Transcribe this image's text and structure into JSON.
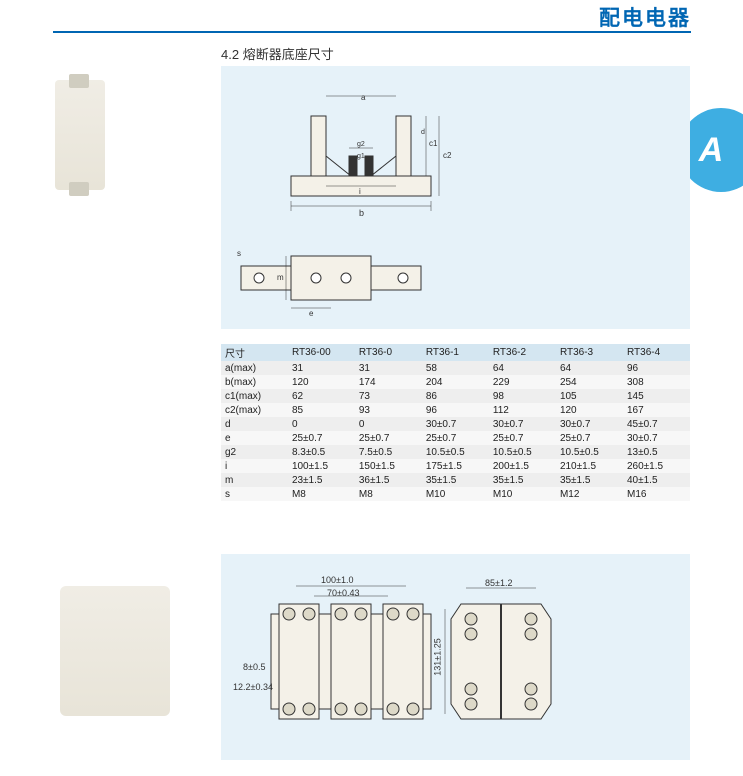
{
  "header": {
    "title": "配电电器"
  },
  "tab": {
    "letter": "A"
  },
  "section": {
    "number": "4.2",
    "title": "熔断器底座尺寸"
  },
  "table": {
    "columns": [
      "尺寸",
      "RT36-00",
      "RT36-0",
      "RT36-1",
      "RT36-2",
      "RT36-3",
      "RT36-4"
    ],
    "rows": [
      [
        "a(max)",
        "31",
        "31",
        "58",
        "64",
        "64",
        "96"
      ],
      [
        "b(max)",
        "120",
        "174",
        "204",
        "229",
        "254",
        "308"
      ],
      [
        "c1(max)",
        "62",
        "73",
        "86",
        "98",
        "105",
        "145"
      ],
      [
        "c2(max)",
        "85",
        "93",
        "96",
        "112",
        "120",
        "167"
      ],
      [
        "d",
        "0",
        "0",
        "30±0.7",
        "30±0.7",
        "30±0.7",
        "45±0.7"
      ],
      [
        "e",
        "25±0.7",
        "25±0.7",
        "25±0.7",
        "25±0.7",
        "25±0.7",
        "30±0.7"
      ],
      [
        "g2",
        "8.3±0.5",
        "7.5±0.5",
        "10.5±0.5",
        "10.5±0.5",
        "10.5±0.5",
        "13±0.5"
      ],
      [
        "i",
        "100±1.5",
        "150±1.5",
        "175±1.5",
        "200±1.5",
        "210±1.5",
        "260±1.5"
      ],
      [
        "m",
        "23±1.5",
        "36±1.5",
        "35±1.5",
        "35±1.5",
        "35±1.5",
        "40±1.5"
      ],
      [
        "s",
        "M8",
        "M8",
        "M10",
        "M10",
        "M12",
        "M16"
      ]
    ]
  },
  "diagram2": {
    "dims": {
      "width_outer": "100±1.0",
      "width_inner": "70±0.43",
      "hole_d": "8±0.5",
      "hole_h": "12.2±0.34",
      "side_w": "85±1.2",
      "side_h": "131±1.25"
    }
  },
  "colors": {
    "brand": "#0066b3",
    "tab_bg": "#3eaee2",
    "diagram_bg": "#e6f2f9",
    "table_header_bg": "#d4e6f1",
    "row_even": "#f7f7f7",
    "row_odd": "#eeeeee",
    "line": "#333333"
  }
}
